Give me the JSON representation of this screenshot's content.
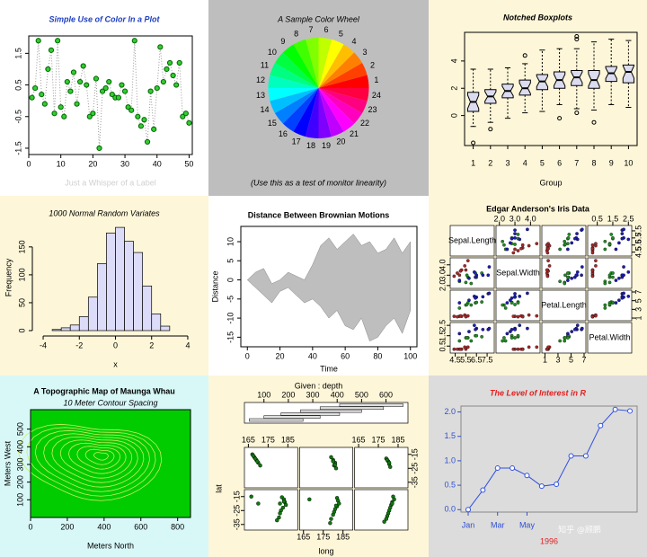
{
  "chart_data": [
    {
      "type": "scatter",
      "title": "Simple Use of Color In a Plot",
      "title_color": "#2040c0",
      "xlabel": "Just a Whisper of a Label",
      "xlabel_color": "#d0d0d0",
      "background": "#ffffff",
      "x": [
        1,
        2,
        3,
        4,
        5,
        6,
        7,
        8,
        9,
        10,
        11,
        12,
        13,
        14,
        15,
        16,
        17,
        18,
        19,
        20,
        21,
        22,
        23,
        24,
        25,
        26,
        27,
        28,
        29,
        30,
        31,
        32,
        33,
        34,
        35,
        36,
        37,
        38,
        39,
        40,
        41,
        42,
        43,
        44,
        45,
        46,
        47,
        48,
        49,
        50
      ],
      "values": [
        0.1,
        0.4,
        1.9,
        0.2,
        -0.1,
        1.0,
        1.6,
        -0.4,
        1.9,
        -0.2,
        -0.5,
        0.6,
        0.3,
        0.9,
        -0.1,
        0.6,
        1.1,
        0.5,
        -0.5,
        -0.4,
        0.7,
        -1.5,
        0.3,
        0.4,
        0.6,
        0.2,
        0.1,
        0.1,
        0.5,
        0.3,
        -0.2,
        -0.3,
        1.9,
        -0.5,
        -0.8,
        -0.6,
        -1.3,
        0.3,
        -0.9,
        0.4,
        1.7,
        0.6,
        1.0,
        1.2,
        0.8,
        0.5,
        1.2,
        -0.5,
        -0.4,
        -0.7
      ],
      "color": "#33cc33",
      "edge_color": "#006600",
      "xlim": [
        0,
        51
      ],
      "ylim": [
        -1.7,
        2.05
      ],
      "xticks": [
        0,
        10,
        20,
        30,
        40,
        50
      ],
      "yticks": [
        -1.5,
        -0.5,
        0.5,
        1.5
      ]
    },
    {
      "type": "pie",
      "title": "A Sample Color Wheel",
      "subtitle": "(Use this as a test of monitor linearity)",
      "background": "#bebebe",
      "categories": [
        "1",
        "2",
        "3",
        "4",
        "5",
        "6",
        "7",
        "8",
        "9",
        "10",
        "11",
        "12",
        "13",
        "14",
        "15",
        "16",
        "17",
        "18",
        "19",
        "20",
        "21",
        "22",
        "23",
        "24"
      ],
      "values": [
        1,
        1,
        1,
        1,
        1,
        1,
        1,
        1,
        1,
        1,
        1,
        1,
        1,
        1,
        1,
        1,
        1,
        1,
        1,
        1,
        1,
        1,
        1,
        1
      ],
      "colors": [
        "#FF0000",
        "#FF4000",
        "#FF8000",
        "#FFBF00",
        "#FFFF00",
        "#BFFF00",
        "#80FF00",
        "#40FF00",
        "#00FF00",
        "#00FF40",
        "#00FF80",
        "#00FFBF",
        "#00FFFF",
        "#00BFFF",
        "#0080FF",
        "#0040FF",
        "#0000FF",
        "#4000FF",
        "#8000FF",
        "#BF00FF",
        "#FF00FF",
        "#FF00BF",
        "#FF0080",
        "#FF0040"
      ]
    },
    {
      "type": "box",
      "title": "Notched Boxplots",
      "xlabel": "Group",
      "background": "#fdf6d8",
      "color": "#dcdcf0",
      "categories": [
        "1",
        "2",
        "3",
        "4",
        "5",
        "6",
        "7",
        "8",
        "9",
        "10"
      ],
      "stats": [
        [
          -0.8,
          0.3,
          1.0,
          1.7,
          3.4
        ],
        [
          -0.5,
          0.9,
          1.4,
          1.9,
          3.4
        ],
        [
          -0.2,
          1.3,
          1.8,
          2.3,
          3.5
        ],
        [
          0.2,
          1.5,
          2.0,
          2.6,
          3.8
        ],
        [
          0.3,
          1.9,
          2.5,
          3.0,
          4.8
        ],
        [
          0.8,
          2.0,
          2.6,
          3.2,
          4.9
        ],
        [
          0.5,
          2.2,
          2.8,
          3.3,
          4.9
        ],
        [
          0.4,
          2.0,
          2.6,
          3.3,
          5.4
        ],
        [
          0.8,
          2.5,
          3.1,
          3.6,
          5.6
        ],
        [
          0.6,
          2.4,
          3.2,
          3.7,
          5.5
        ]
      ],
      "outliers": [
        [
          -2.0
        ],
        [
          -1.0
        ],
        [],
        [
          4.4
        ],
        [],
        [
          -0.2
        ],
        [
          5.6,
          5.8,
          0.2
        ],
        [
          -0.5
        ],
        [],
        []
      ],
      "ylim": [
        -2.2,
        6.1
      ],
      "yticks": [
        0,
        2,
        4
      ]
    },
    {
      "type": "histogram",
      "title": "1000 Normal Random Variates",
      "xlabel": "x",
      "ylabel": "Frequency",
      "background": "#fdf6d8",
      "color": "#dcdcf8",
      "bins": [
        -3.5,
        -3,
        -2.5,
        -2,
        -1.5,
        -1,
        -0.5,
        0,
        0.5,
        1,
        1.5,
        2,
        2.5,
        3
      ],
      "counts": [
        2,
        5,
        10,
        25,
        60,
        120,
        175,
        185,
        160,
        140,
        80,
        30,
        8
      ],
      "xlim": [
        -4.3,
        4.3
      ],
      "ylim": [
        0,
        190
      ],
      "xticks": [
        -4,
        -2,
        0,
        2,
        4
      ],
      "yticks": [
        0,
        50,
        100,
        150
      ]
    },
    {
      "type": "area",
      "title": "Distance Between Brownian Motions",
      "xlabel": "Time",
      "ylabel": "Distance",
      "background": "#ffffff",
      "color": "#bebebe",
      "x": [
        0,
        5,
        10,
        15,
        20,
        25,
        30,
        35,
        40,
        45,
        50,
        55,
        60,
        65,
        70,
        75,
        80,
        85,
        90,
        95,
        100
      ],
      "upper": [
        0,
        2,
        3,
        -1,
        0,
        2,
        1,
        0,
        4,
        9,
        11,
        8,
        10,
        12,
        9,
        10,
        7,
        8,
        11,
        7,
        10
      ],
      "lower": [
        0,
        -2,
        -4,
        -6,
        -3,
        -2,
        -4,
        -6,
        -5,
        -7,
        -10,
        -8,
        -12,
        -13,
        -10,
        -16,
        -15,
        -12,
        -10,
        -14,
        -8
      ],
      "xlim": [
        -4,
        104
      ],
      "ylim": [
        -17.5,
        14
      ],
      "xticks": [
        0,
        20,
        40,
        60,
        80,
        100
      ],
      "yticks": [
        -15,
        -10,
        -5,
        0,
        5,
        10
      ]
    },
    {
      "type": "pairs",
      "title": "Edgar Anderson's Iris Data",
      "background": "#fdf6d8",
      "variables": [
        {
          "name": "Sepal.Length",
          "lim": [
            4.2,
            8.0
          ],
          "ticks": [
            4.5,
            5.5,
            6.5,
            7.5
          ]
        },
        {
          "name": "Sepal.Width",
          "lim": [
            1.9,
            4.5
          ],
          "ticks": [
            {
              "value": 2,
              "label": "2.0"
            },
            {
              "value": 3,
              "label": "3.0"
            },
            {
              "value": 4,
              "label": "4.0"
            }
          ]
        },
        {
          "name": "Petal.Length",
          "lim": [
            0.8,
            7.0
          ],
          "ticks": [
            1,
            3,
            5,
            7
          ]
        },
        {
          "name": "Petal.Width",
          "lim": [
            0,
            2.6
          ],
          "ticks": [
            0.5,
            1.5,
            2.5
          ]
        }
      ],
      "series": [
        {
          "color": "#a52a2a",
          "points": [
            [
              5.1,
              3.5,
              1.4,
              0.2
            ],
            [
              4.9,
              3.0,
              1.4,
              0.2
            ],
            [
              4.7,
              3.2,
              1.3,
              0.2
            ],
            [
              5.4,
              3.9,
              1.7,
              0.4
            ],
            [
              5.0,
              3.4,
              1.5,
              0.2
            ],
            [
              5.7,
              4.4,
              1.5,
              0.4
            ],
            [
              4.4,
              2.9,
              1.4,
              0.2
            ],
            [
              5.5,
              3.5,
              1.3,
              0.2
            ]
          ]
        },
        {
          "color": "#228b22",
          "points": [
            [
              7.0,
              3.2,
              4.7,
              1.4
            ],
            [
              6.4,
              3.2,
              4.5,
              1.5
            ],
            [
              5.5,
              2.3,
              4.0,
              1.3
            ],
            [
              6.5,
              2.8,
              4.6,
              1.5
            ],
            [
              5.7,
              2.8,
              4.5,
              1.3
            ],
            [
              4.9,
              2.4,
              3.3,
              1.0
            ],
            [
              6.0,
              2.2,
              4.0,
              1.0
            ],
            [
              5.6,
              3.0,
              4.1,
              1.3
            ]
          ]
        },
        {
          "color": "#1c1cb0",
          "points": [
            [
              6.3,
              3.3,
              6.0,
              2.5
            ],
            [
              5.8,
              2.7,
              5.1,
              1.9
            ],
            [
              7.1,
              3.0,
              5.9,
              2.1
            ],
            [
              6.5,
              3.0,
              5.8,
              2.2
            ],
            [
              7.6,
              3.0,
              6.6,
              2.1
            ],
            [
              4.9,
              2.5,
              4.5,
              1.7
            ],
            [
              7.7,
              3.8,
              6.7,
              2.2
            ],
            [
              6.4,
              2.8,
              5.6,
              2.1
            ]
          ]
        }
      ]
    },
    {
      "type": "contour",
      "title": "A Topographic Map of Maunga Whau",
      "subtitle": "10 Meter Contour Spacing",
      "xlabel": "Meters North",
      "ylabel": "Meters West",
      "background": "#d8f8f8",
      "fill": "#00cc00",
      "line_color": "#c8f060",
      "levels": [
        100,
        110,
        120,
        130,
        140,
        150,
        160,
        170,
        180,
        190
      ],
      "xlim": [
        0,
        870
      ],
      "ylim": [
        0,
        610
      ],
      "xticks": [
        0,
        200,
        400,
        600,
        800
      ],
      "yticks": [
        100,
        200,
        300,
        400,
        500
      ]
    },
    {
      "type": "coplot",
      "title": "Given : depth",
      "xlabel": "long",
      "ylabel": "lat",
      "background": "#fdf6d8",
      "color": "#117711",
      "depth_lim": [
        20,
        690
      ],
      "depth_ticks": [
        100,
        200,
        300,
        400,
        500,
        600
      ],
      "depth_intervals": [
        [
          40,
          260
        ],
        [
          100,
          330
        ],
        [
          170,
          410
        ],
        [
          250,
          500
        ],
        [
          330,
          590
        ],
        [
          410,
          670
        ]
      ],
      "long_lim": [
        163,
        190
      ],
      "long_ticks": [
        165,
        175,
        185
      ],
      "lat_lim": [
        -39,
        -10
      ],
      "lat_ticks": [
        -35,
        -25,
        -15
      ],
      "panels": [
        [
          [
            182,
            -15.5
          ],
          [
            183,
            -17
          ],
          [
            183.5,
            -19
          ],
          [
            184,
            -21
          ],
          [
            182.5,
            -23
          ],
          [
            181.5,
            -25
          ],
          [
            181,
            -27
          ],
          [
            180.5,
            -30
          ],
          [
            179.5,
            -32
          ],
          [
            181,
            -20
          ],
          [
            183,
            -18.5
          ],
          [
            170,
            -20
          ],
          [
            166.5,
            -15
          ]
        ],
        [
          [
            182,
            -16
          ],
          [
            182.5,
            -18
          ],
          [
            183,
            -20
          ],
          [
            182,
            -22
          ],
          [
            181,
            -24
          ],
          [
            180.5,
            -26
          ],
          [
            180,
            -28
          ],
          [
            179,
            -31
          ],
          [
            178.5,
            -34
          ],
          [
            181.5,
            -21.5
          ],
          [
            168,
            -17
          ]
        ],
        [
          [
            182.5,
            -15
          ],
          [
            183,
            -17
          ],
          [
            182,
            -19
          ],
          [
            181.5,
            -21
          ],
          [
            181,
            -23
          ],
          [
            180.5,
            -25
          ],
          [
            180,
            -27
          ],
          [
            179.5,
            -29
          ],
          [
            179,
            -31
          ],
          [
            178,
            -33
          ],
          [
            182,
            -20
          ]
        ],
        [
          [
            167,
            -15
          ],
          [
            168,
            -17
          ],
          [
            169,
            -19
          ],
          [
            170,
            -21
          ],
          [
            171,
            -23
          ],
          [
            168.5,
            -18
          ],
          [
            169.5,
            -20
          ],
          [
            167.5,
            -16
          ]
        ],
        [
          [
            179,
            -17
          ],
          [
            180,
            -19
          ],
          [
            181,
            -21
          ],
          [
            180.5,
            -23
          ],
          [
            181.5,
            -25
          ],
          [
            180,
            -20
          ],
          [
            181,
            -22.5
          ]
        ],
        [
          [
            179,
            -18
          ],
          [
            180,
            -20
          ],
          [
            180.5,
            -22
          ],
          [
            181,
            -24
          ],
          [
            179.5,
            -19
          ],
          [
            180.5,
            -21
          ]
        ]
      ]
    },
    {
      "type": "line",
      "title": "The Level of Interest in R",
      "title_color": "#e02020",
      "xlabel": "1996",
      "xlabel_color": "#e02020",
      "background": "#dcdcdc",
      "color": "#3050e0",
      "axis_color": "#3050d0",
      "watermark": "知乎 @顾鹏",
      "categories": [
        "Jan",
        null,
        "Mar",
        null,
        "May",
        null,
        null,
        null,
        null,
        null,
        null,
        null
      ],
      "values": [
        0,
        0.4,
        0.85,
        0.85,
        0.7,
        0.48,
        0.52,
        1.1,
        1.1,
        1.72,
        2.05,
        2.02
      ],
      "ylim": [
        -0.05,
        2.12
      ],
      "yticks": [
        {
          "value": 0,
          "label": "0.0"
        },
        0.5,
        {
          "value": 1,
          "label": "1.0"
        },
        1.5,
        {
          "value": 2,
          "label": "2.0"
        }
      ]
    }
  ]
}
